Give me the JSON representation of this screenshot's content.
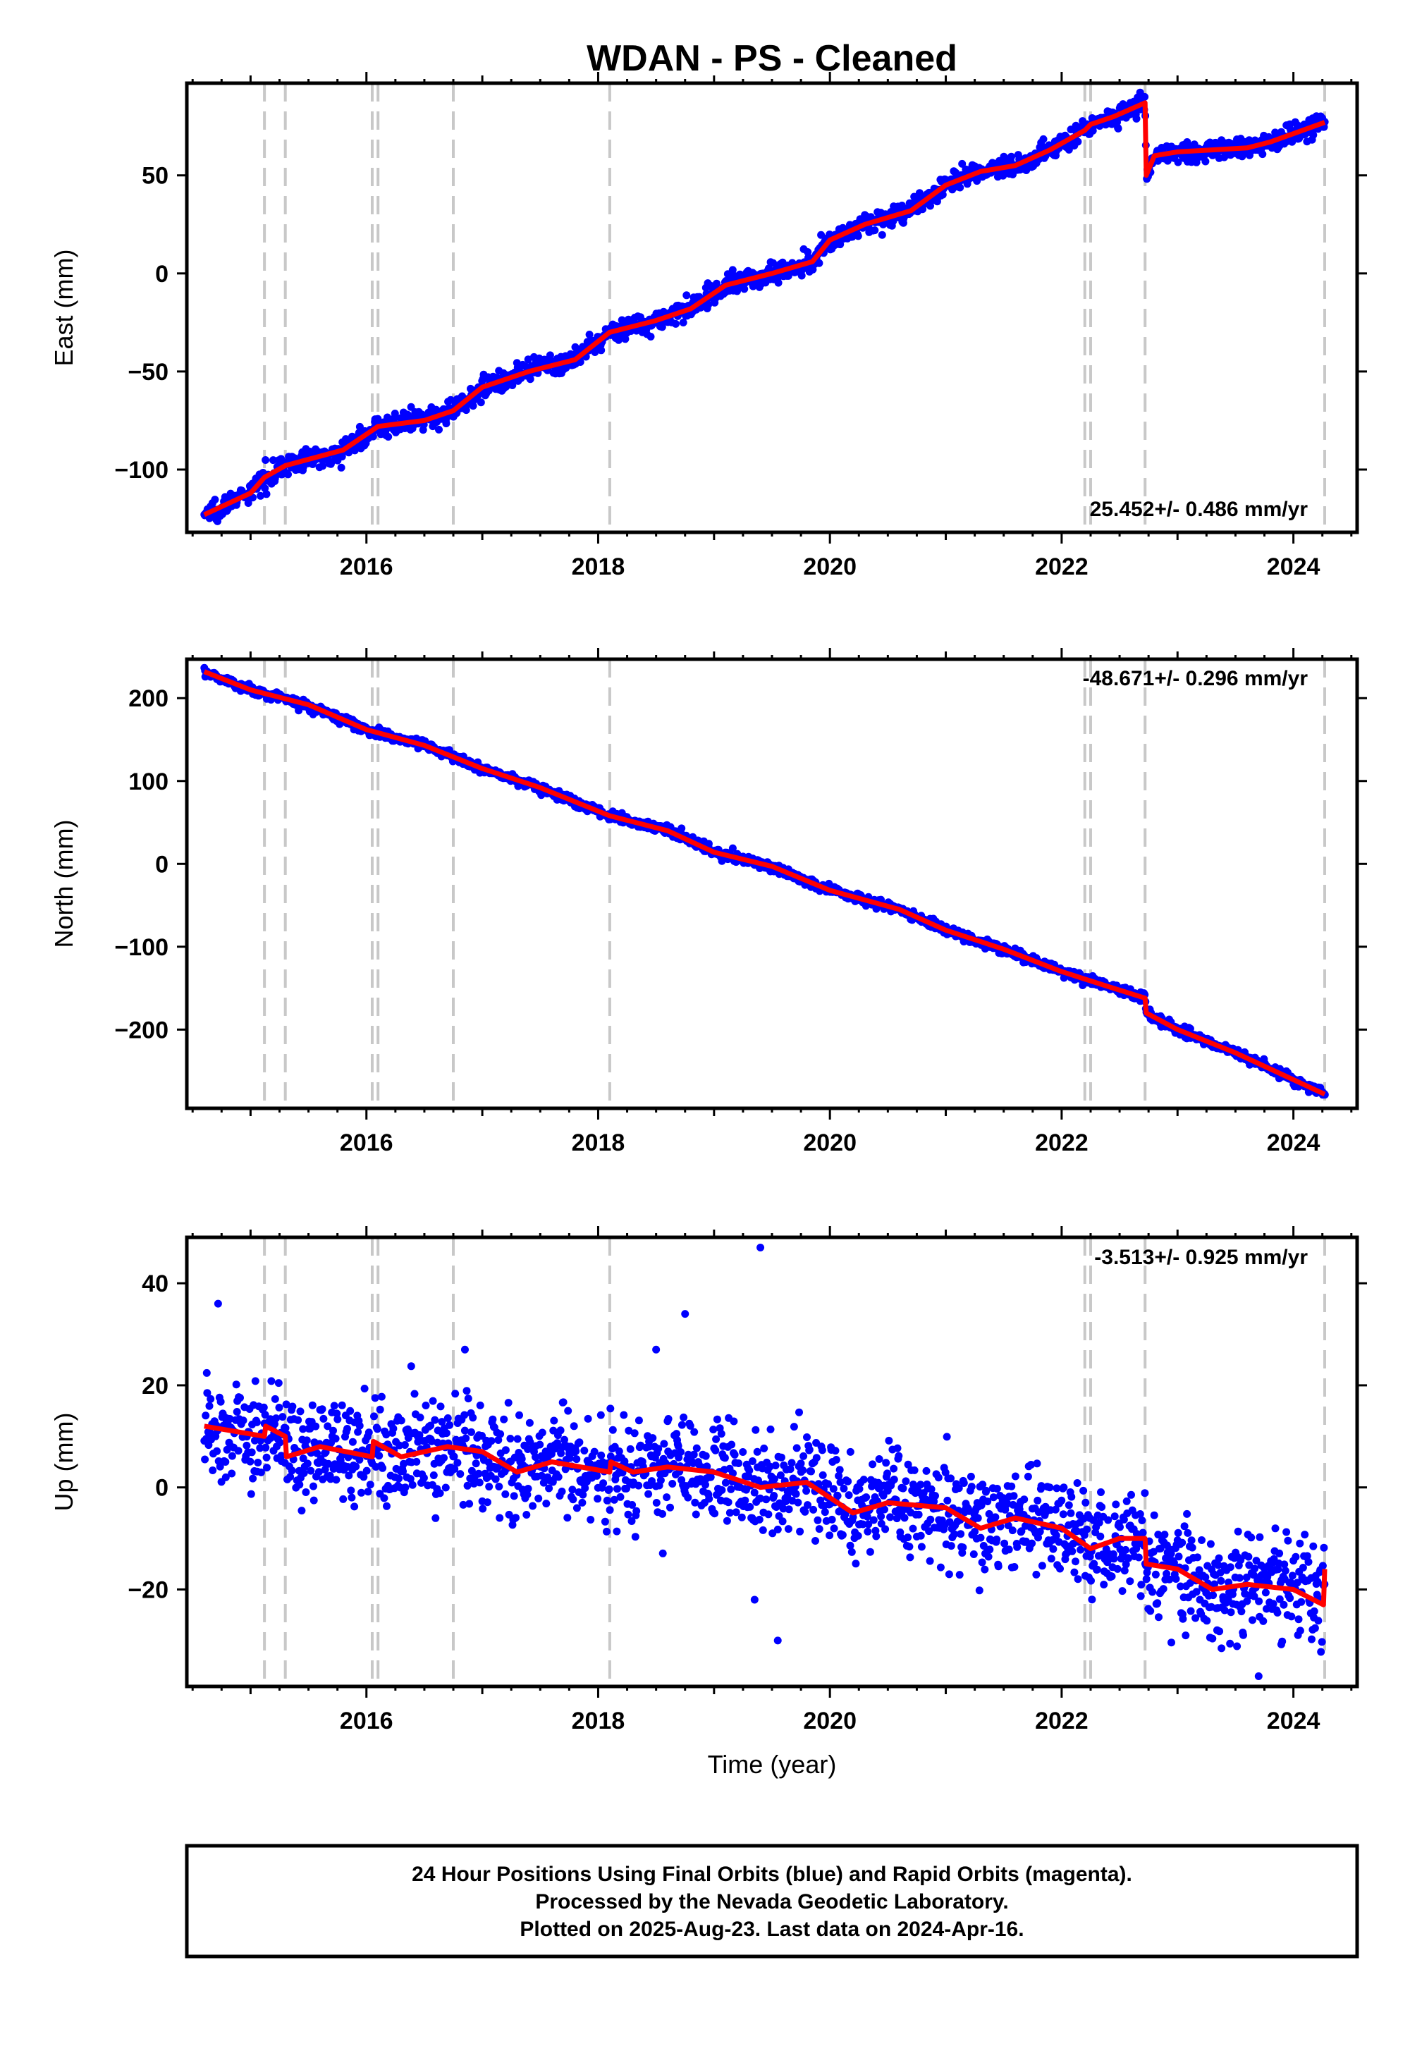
{
  "title": "WDAN  - PS - Cleaned",
  "footer": {
    "line1": "24 Hour Positions Using Final Orbits (blue) and Rapid Orbits (magenta).",
    "line2": "Processed by the Nevada Geodetic Laboratory.",
    "line3": "Plotted on 2025-Aug-23. Last data on 2024-Apr-16."
  },
  "colors": {
    "points": "#0000ff",
    "fit": "#ff0000",
    "events": "#c8c8c8"
  },
  "chart_data": [
    {
      "type": "scatter",
      "ylabel": "East (mm)",
      "xlabel": "",
      "rate_label": "25.452+/- 0.486 mm/yr",
      "xlim": [
        2014.45,
        2024.55
      ],
      "ylim": [
        -132,
        97
      ],
      "x_ticks": [
        2016,
        2018,
        2020,
        2022,
        2024
      ],
      "x_tick_labels": [
        "2016",
        "2018",
        "2020",
        "2022",
        "2024"
      ],
      "y_ticks": [
        -100,
        -50,
        0,
        50
      ],
      "y_tick_labels": [
        "−100",
        "−50",
        "0",
        "50"
      ],
      "event_lines": [
        2015.12,
        2015.3,
        2016.05,
        2016.1,
        2016.75,
        2018.1,
        2022.2,
        2022.25,
        2022.72,
        2024.27
      ],
      "fit": [
        [
          2014.6,
          -123
        ],
        [
          2015.0,
          -112
        ],
        [
          2015.12,
          -104
        ],
        [
          2015.3,
          -98
        ],
        [
          2015.8,
          -90
        ],
        [
          2016.05,
          -80
        ],
        [
          2016.1,
          -78
        ],
        [
          2016.5,
          -75
        ],
        [
          2016.75,
          -70
        ],
        [
          2017.0,
          -58
        ],
        [
          2017.4,
          -50
        ],
        [
          2017.8,
          -44
        ],
        [
          2018.1,
          -30
        ],
        [
          2018.5,
          -24
        ],
        [
          2018.8,
          -18
        ],
        [
          2019.1,
          -6
        ],
        [
          2019.5,
          0
        ],
        [
          2019.85,
          6
        ],
        [
          2020.0,
          17
        ],
        [
          2020.3,
          25
        ],
        [
          2020.7,
          32
        ],
        [
          2021.0,
          45
        ],
        [
          2021.3,
          52
        ],
        [
          2021.6,
          55
        ],
        [
          2021.9,
          63
        ],
        [
          2022.2,
          73
        ],
        [
          2022.25,
          76
        ],
        [
          2022.45,
          80
        ],
        [
          2022.72,
          87
        ],
        [
          2022.73,
          50
        ],
        [
          2022.8,
          60
        ],
        [
          2023.0,
          62
        ],
        [
          2023.3,
          63
        ],
        [
          2023.6,
          64
        ],
        [
          2023.8,
          67
        ],
        [
          2024.27,
          77
        ]
      ],
      "noise": 2.6,
      "point_count": 1750,
      "outliers": []
    },
    {
      "type": "scatter",
      "ylabel": "North (mm)",
      "xlabel": "",
      "rate_label": "-48.671+/- 0.296 mm/yr",
      "xlim": [
        2014.45,
        2024.55
      ],
      "ylim": [
        -295,
        247
      ],
      "x_ticks": [
        2016,
        2018,
        2020,
        2022,
        2024
      ],
      "x_tick_labels": [
        "2016",
        "2018",
        "2020",
        "2022",
        "2024"
      ],
      "y_ticks": [
        -200,
        -100,
        0,
        100,
        200
      ],
      "y_tick_labels": [
        "−200",
        "−100",
        "0",
        "100",
        "200"
      ],
      "event_lines": [
        2015.12,
        2015.3,
        2016.05,
        2016.1,
        2016.75,
        2018.1,
        2022.2,
        2022.25,
        2022.72,
        2024.27
      ],
      "fit": [
        [
          2014.6,
          232
        ],
        [
          2015.0,
          210
        ],
        [
          2015.5,
          192
        ],
        [
          2016.0,
          162
        ],
        [
          2016.5,
          143
        ],
        [
          2017.0,
          115
        ],
        [
          2017.5,
          92
        ],
        [
          2018.1,
          58
        ],
        [
          2018.6,
          40
        ],
        [
          2019.0,
          14
        ],
        [
          2019.5,
          -3
        ],
        [
          2020.0,
          -32
        ],
        [
          2020.6,
          -55
        ],
        [
          2021.0,
          -80
        ],
        [
          2021.5,
          -103
        ],
        [
          2022.0,
          -130
        ],
        [
          2022.4,
          -148
        ],
        [
          2022.72,
          -162
        ],
        [
          2022.73,
          -180
        ],
        [
          2023.0,
          -200
        ],
        [
          2023.5,
          -228
        ],
        [
          2024.27,
          -278
        ]
      ],
      "noise": 2.8,
      "point_count": 1750,
      "outliers": []
    },
    {
      "type": "scatter",
      "ylabel": "Up (mm)",
      "xlabel": "Time (year)",
      "rate_label": "-3.513+/- 0.925 mm/yr",
      "xlim": [
        2014.45,
        2024.55
      ],
      "ylim": [
        -39,
        49
      ],
      "x_ticks": [
        2016,
        2018,
        2020,
        2022,
        2024
      ],
      "x_tick_labels": [
        "2016",
        "2018",
        "2020",
        "2022",
        "2024"
      ],
      "y_ticks": [
        -20,
        0,
        20,
        40
      ],
      "y_tick_labels": [
        "−20",
        "0",
        "20",
        "40"
      ],
      "event_lines": [
        2015.12,
        2015.3,
        2016.05,
        2016.1,
        2016.75,
        2018.1,
        2022.2,
        2022.25,
        2022.72,
        2024.27
      ],
      "fit": [
        [
          2014.6,
          12
        ],
        [
          2015.12,
          10
        ],
        [
          2015.13,
          12
        ],
        [
          2015.3,
          10
        ],
        [
          2015.31,
          6
        ],
        [
          2015.6,
          8
        ],
        [
          2016.05,
          6
        ],
        [
          2016.06,
          9
        ],
        [
          2016.3,
          6
        ],
        [
          2016.7,
          8
        ],
        [
          2017.0,
          7
        ],
        [
          2017.3,
          3
        ],
        [
          2017.6,
          5
        ],
        [
          2018.1,
          3
        ],
        [
          2018.11,
          5
        ],
        [
          2018.3,
          3
        ],
        [
          2018.6,
          4
        ],
        [
          2019.0,
          3
        ],
        [
          2019.4,
          0
        ],
        [
          2019.8,
          1
        ],
        [
          2020.2,
          -5
        ],
        [
          2020.5,
          -3
        ],
        [
          2021.0,
          -4
        ],
        [
          2021.3,
          -8
        ],
        [
          2021.6,
          -6
        ],
        [
          2022.0,
          -8
        ],
        [
          2022.25,
          -12
        ],
        [
          2022.5,
          -10
        ],
        [
          2022.72,
          -10
        ],
        [
          2022.73,
          -15
        ],
        [
          2023.0,
          -16
        ],
        [
          2023.3,
          -20
        ],
        [
          2023.6,
          -19
        ],
        [
          2024.0,
          -20
        ],
        [
          2024.26,
          -23
        ],
        [
          2024.27,
          -16
        ]
      ],
      "noise": 5.0,
      "point_count": 1750,
      "outliers": [
        [
          2014.72,
          36
        ],
        [
          2019.4,
          47
        ],
        [
          2018.75,
          34
        ],
        [
          2019.55,
          -30
        ],
        [
          2019.35,
          -22
        ],
        [
          2023.7,
          -37
        ],
        [
          2018.5,
          27
        ],
        [
          2016.85,
          27
        ]
      ]
    }
  ]
}
